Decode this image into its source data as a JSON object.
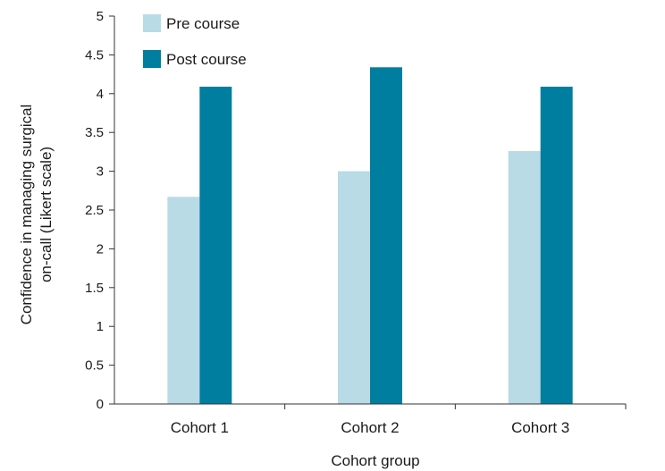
{
  "chart_data": {
    "type": "bar",
    "xlabel": "Cohort group",
    "ylabel_lines": [
      "Confidence in managing surgical",
      "on-call (Likert scale)"
    ],
    "categories": [
      "Cohort 1",
      "Cohort 2",
      "Cohort 3"
    ],
    "ylim": [
      0,
      5
    ],
    "yticks": [
      0,
      0.5,
      1,
      1.5,
      2,
      2.5,
      3,
      3.5,
      4,
      4.5,
      5
    ],
    "grid": false,
    "legend_position": "top-left",
    "series": [
      {
        "name": "Pre course",
        "color": "#b9dbe6",
        "values": [
          2.67,
          3.0,
          3.26
        ]
      },
      {
        "name": "Post course",
        "color": "#007e9f",
        "values": [
          4.09,
          4.34,
          4.09
        ]
      }
    ]
  }
}
